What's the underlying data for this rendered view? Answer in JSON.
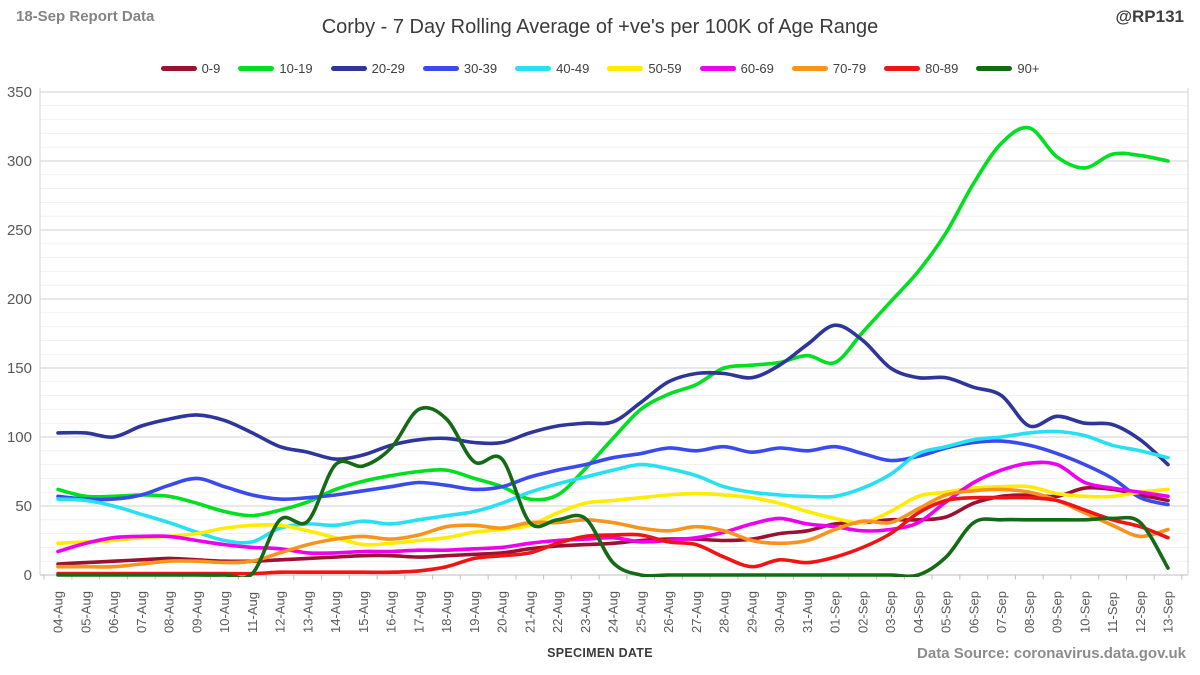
{
  "page": {
    "report_label": "18-Sep Report Data",
    "handle": "@RP131",
    "source_label": "Data Source: coronavirus.data.gov.uk"
  },
  "chart_data": {
    "type": "line",
    "title": "Corby - 7 Day Rolling Average of +ve's per 100K of Age Range",
    "xlabel": "SPECIMEN DATE",
    "ylabel": "",
    "ylim": [
      0,
      350
    ],
    "y_major_step": 50,
    "y_minor_step": 10,
    "grid": true,
    "legend_position": "top",
    "categories": [
      "04-Aug",
      "05-Aug",
      "06-Aug",
      "07-Aug",
      "08-Aug",
      "09-Aug",
      "10-Aug",
      "11-Aug",
      "12-Aug",
      "13-Aug",
      "14-Aug",
      "15-Aug",
      "16-Aug",
      "17-Aug",
      "18-Aug",
      "19-Aug",
      "20-Aug",
      "21-Aug",
      "22-Aug",
      "23-Aug",
      "24-Aug",
      "25-Aug",
      "26-Aug",
      "27-Aug",
      "28-Aug",
      "29-Aug",
      "30-Aug",
      "31-Aug",
      "01-Sep",
      "02-Sep",
      "03-Sep",
      "04-Sep",
      "05-Sep",
      "06-Sep",
      "07-Sep",
      "08-Sep",
      "09-Sep",
      "10-Sep",
      "11-Sep",
      "12-Sep",
      "13-Sep"
    ],
    "series": [
      {
        "name": "0-9",
        "color": "#9C1131",
        "values": [
          8,
          9,
          10,
          11,
          12,
          11,
          10,
          10,
          11,
          12,
          13,
          14,
          14,
          13,
          14,
          15,
          16,
          19,
          21,
          22,
          23,
          25,
          26,
          26,
          25,
          26,
          30,
          32,
          37,
          38,
          40,
          40,
          42,
          52,
          57,
          58,
          57,
          63,
          62,
          58,
          54
        ]
      },
      {
        "name": "10-19",
        "color": "#00DF20",
        "values": [
          62,
          57,
          57,
          58,
          57,
          52,
          46,
          43,
          47,
          53,
          62,
          68,
          72,
          75,
          76,
          70,
          64,
          55,
          58,
          77,
          99,
          120,
          131,
          138,
          150,
          152,
          154,
          159,
          154,
          176,
          198,
          220,
          248,
          284,
          313,
          324,
          303,
          295,
          305,
          304,
          300
        ]
      },
      {
        "name": "20-29",
        "color": "#2F3699",
        "values": [
          103,
          103,
          100,
          108,
          113,
          116,
          112,
          103,
          93,
          89,
          84,
          87,
          94,
          98,
          99,
          96,
          96,
          103,
          108,
          110,
          111,
          125,
          140,
          146,
          146,
          143,
          152,
          167,
          181,
          170,
          150,
          143,
          143,
          136,
          130,
          108,
          115,
          110,
          109,
          98,
          80
        ]
      },
      {
        "name": "30-39",
        "color": "#3A4AEC",
        "values": [
          57,
          55,
          55,
          58,
          65,
          70,
          64,
          58,
          55,
          56,
          58,
          61,
          64,
          67,
          65,
          62,
          64,
          71,
          76,
          80,
          85,
          88,
          92,
          90,
          93,
          89,
          92,
          90,
          93,
          88,
          83,
          86,
          92,
          96,
          97,
          94,
          88,
          80,
          70,
          56,
          51
        ]
      },
      {
        "name": "40-49",
        "color": "#27E0F2",
        "values": [
          55,
          54,
          50,
          44,
          38,
          31,
          25,
          24,
          34,
          37,
          36,
          39,
          37,
          40,
          43,
          46,
          52,
          60,
          66,
          71,
          76,
          80,
          77,
          72,
          64,
          60,
          58,
          57,
          57,
          63,
          73,
          88,
          93,
          98,
          100,
          103,
          104,
          101,
          94,
          90,
          85
        ]
      },
      {
        "name": "50-59",
        "color": "#FFEC00",
        "values": [
          23,
          24,
          25,
          27,
          28,
          30,
          34,
          36,
          36,
          32,
          27,
          22,
          23,
          25,
          27,
          31,
          33,
          36,
          45,
          52,
          54,
          56,
          58,
          59,
          58,
          56,
          52,
          46,
          41,
          38,
          46,
          57,
          60,
          63,
          64,
          64,
          59,
          57,
          57,
          60,
          62
        ]
      },
      {
        "name": "60-69",
        "color": "#EE00EE",
        "values": [
          17,
          23,
          27,
          28,
          28,
          25,
          22,
          20,
          19,
          16,
          16,
          17,
          17,
          18,
          18,
          19,
          20,
          23,
          25,
          26,
          27,
          24,
          25,
          27,
          31,
          37,
          41,
          37,
          35,
          32,
          33,
          38,
          53,
          67,
          76,
          81,
          80,
          67,
          63,
          60,
          57
        ]
      },
      {
        "name": "70-79",
        "color": "#F7941D",
        "values": [
          6,
          6,
          6,
          8,
          10,
          10,
          9,
          10,
          16,
          22,
          26,
          28,
          26,
          29,
          35,
          36,
          34,
          38,
          38,
          40,
          38,
          34,
          32,
          35,
          32,
          25,
          23,
          25,
          33,
          39,
          38,
          48,
          58,
          61,
          62,
          60,
          54,
          45,
          36,
          28,
          33
        ]
      },
      {
        "name": "80-89",
        "color": "#EF1515",
        "values": [
          1,
          1,
          1,
          1,
          1,
          1,
          1,
          1,
          2,
          2,
          2,
          2,
          2,
          3,
          6,
          12,
          14,
          16,
          23,
          28,
          29,
          29,
          24,
          22,
          13,
          6,
          11,
          9,
          13,
          20,
          30,
          45,
          54,
          56,
          56,
          56,
          54,
          47,
          40,
          35,
          27
        ]
      },
      {
        "name": "90+",
        "color": "#156B15",
        "values": [
          0,
          0,
          0,
          0,
          0,
          0,
          0,
          1,
          40,
          39,
          80,
          79,
          92,
          120,
          113,
          82,
          84,
          38,
          40,
          41,
          9,
          0,
          0,
          0,
          0,
          0,
          0,
          0,
          0,
          0,
          0,
          0,
          13,
          38,
          40,
          40,
          40,
          40,
          41,
          38,
          5
        ]
      }
    ]
  }
}
